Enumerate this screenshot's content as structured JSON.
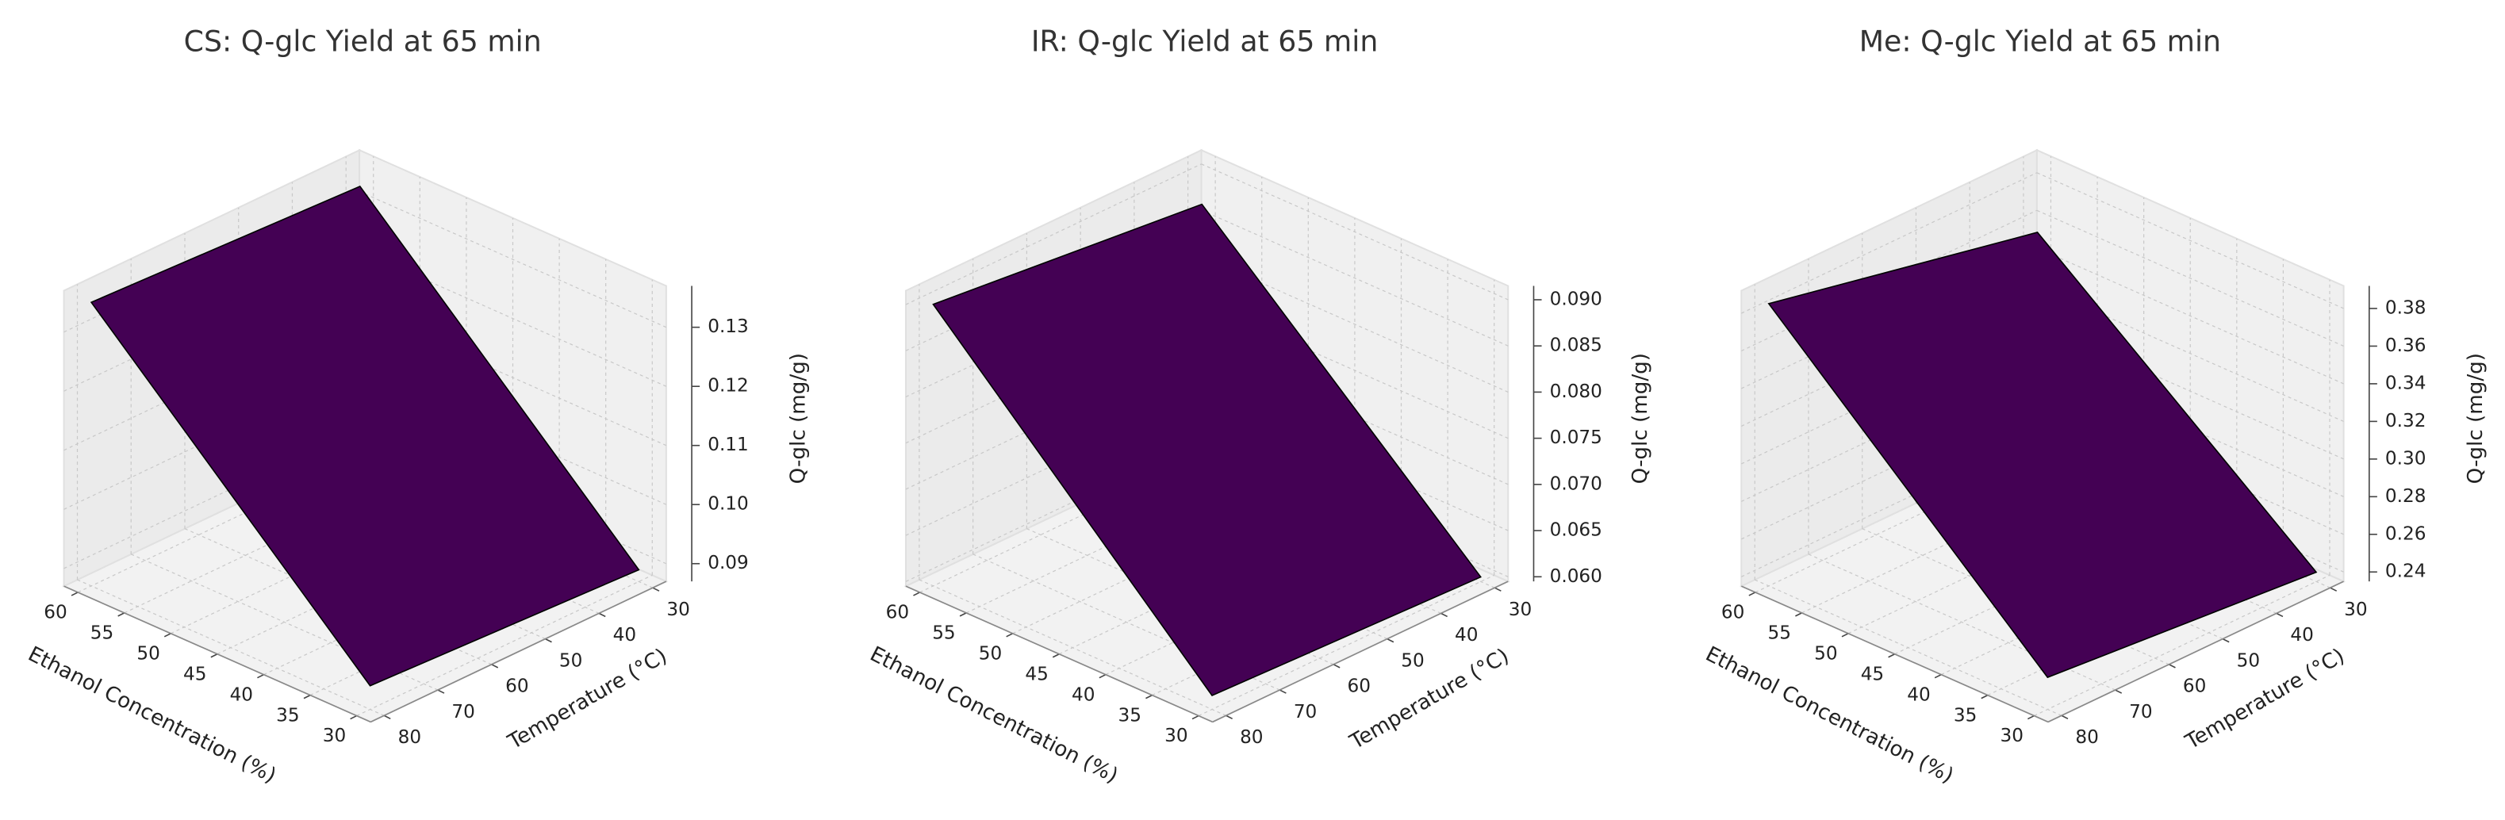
{
  "chart_data": [
    {
      "type": "surface",
      "title": "CS: Q-glc Yield at 65 min",
      "xlabel": "Ethanol Concentration (%)",
      "ylabel": "Temperature (°C)",
      "zlabel": "Q-glc (mg/g)",
      "color": "#440154",
      "x": [
        30,
        60
      ],
      "y": [
        30,
        80
      ],
      "z": [
        [
          0.089,
          0.091
        ],
        [
          0.133,
          0.135
        ]
      ],
      "xlim": [
        28.5,
        61.5
      ],
      "ylim": [
        27.5,
        82.5
      ],
      "zlim": [
        0.087,
        0.137
      ],
      "xticks": [
        30,
        35,
        40,
        45,
        50,
        55,
        60
      ],
      "yticks": [
        30,
        40,
        50,
        60,
        70,
        80
      ],
      "zticks": [
        0.09,
        {
          "value": 0.1,
          "label": "0.10"
        },
        0.11,
        0.12,
        0.13
      ],
      "grid": true
    },
    {
      "type": "surface",
      "title": "IR: Q-glc Yield at 65 min",
      "xlabel": "Ethanol Concentration (%)",
      "ylabel": "Temperature (°C)",
      "zlabel": "Q-glc (mg/g)",
      "color": "#440154",
      "x": [
        30,
        60
      ],
      "y": [
        30,
        80
      ],
      "z": [
        [
          0.06,
          0.061
        ],
        [
          0.087,
          0.09
        ]
      ],
      "xlim": [
        28.5,
        61.5
      ],
      "ylim": [
        27.5,
        82.5
      ],
      "zlim": [
        0.0595,
        0.0915
      ],
      "xticks": [
        30,
        35,
        40,
        45,
        50,
        55,
        60
      ],
      "yticks": [
        30,
        40,
        50,
        60,
        70,
        80
      ],
      "zticks": [
        {
          "value": 0.06,
          "label": "0.060"
        },
        0.065,
        {
          "value": 0.07,
          "label": "0.070"
        },
        0.075,
        {
          "value": 0.08,
          "label": "0.080"
        },
        0.085,
        {
          "value": 0.09,
          "label": "0.090"
        }
      ],
      "grid": true
    },
    {
      "type": "surface",
      "title": "Me: Q-glc Yield at 65 min",
      "xlabel": "Ethanol Concentration (%)",
      "ylabel": "Temperature (°C)",
      "zlabel": "Q-glc (mg/g)",
      "color": "#440154",
      "x": [
        30,
        60
      ],
      "y": [
        30,
        80
      ],
      "z": [
        [
          0.24,
          0.252
        ],
        [
          0.355,
          0.385
        ]
      ],
      "xlim": [
        28.5,
        61.5
      ],
      "ylim": [
        27.5,
        82.5
      ],
      "zlim": [
        0.235,
        0.392
      ],
      "xticks": [
        30,
        35,
        40,
        45,
        50,
        55,
        60
      ],
      "yticks": [
        30,
        40,
        50,
        60,
        70,
        80
      ],
      "zticks": [
        0.24,
        0.26,
        0.28,
        {
          "value": 0.3,
          "label": "0.30"
        },
        0.32,
        0.34,
        0.36,
        0.38
      ],
      "grid": true
    }
  ]
}
